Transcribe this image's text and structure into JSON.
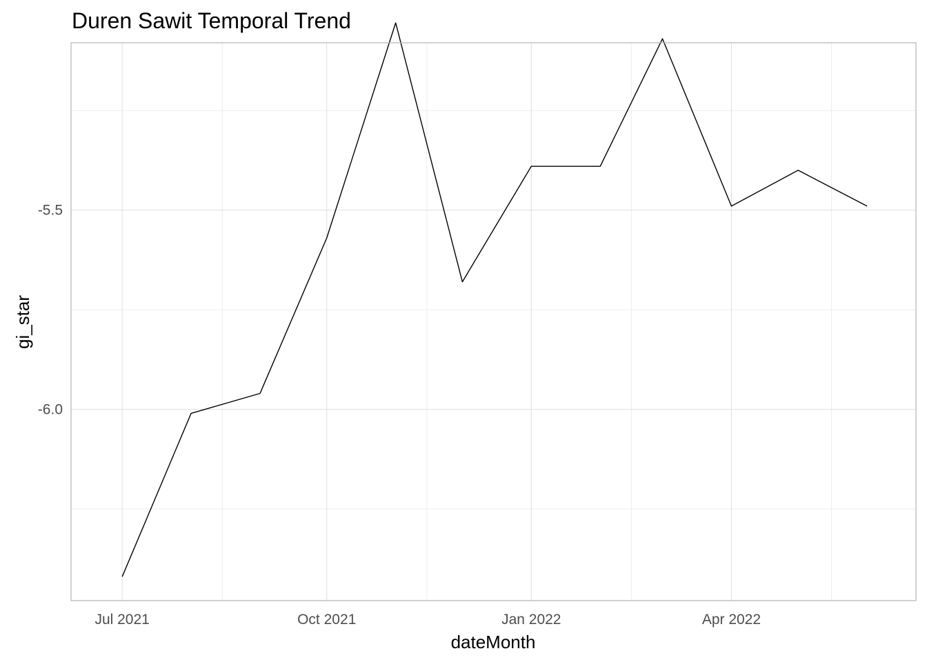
{
  "chart_data": {
    "type": "line",
    "title": "Duren Sawit Temporal Trend",
    "xlabel": "dateMonth",
    "ylabel": "gi_star",
    "x": [
      "2021-07-01",
      "2021-08-01",
      "2021-09-01",
      "2021-10-01",
      "2021-11-01",
      "2021-12-01",
      "2022-01-01",
      "2022-02-01",
      "2022-03-01",
      "2022-04-01",
      "2022-05-01",
      "2022-06-01"
    ],
    "series": [
      {
        "values": [
          -6.42,
          -6.01,
          -5.96,
          -5.57,
          -5.03,
          -5.68,
          -5.39,
          -5.39,
          -5.07,
          -5.49,
          -5.4,
          -5.49
        ]
      }
    ],
    "xticks": [
      {
        "date": "2021-07-01",
        "label": "Jul 2021"
      },
      {
        "date": "2021-10-01",
        "label": "Oct 2021"
      },
      {
        "date": "2022-01-01",
        "label": "Jan 2022"
      },
      {
        "date": "2022-04-01",
        "label": "Apr 2022"
      }
    ],
    "xminor": [
      "2021-08-15",
      "2021-11-15",
      "2022-02-15",
      "2022-05-16"
    ],
    "xlim": [
      "2021-06-08",
      "2022-06-23"
    ],
    "yticks": [
      {
        "value": -5.5,
        "label": "-5.5"
      },
      {
        "value": -6.0,
        "label": "-6.0"
      }
    ],
    "yminor": [
      -5.25,
      -5.75,
      -6.25
    ],
    "ylim": [
      -6.48,
      -5.08
    ],
    "grid": true,
    "legend": "none",
    "line_color": "#000000"
  }
}
